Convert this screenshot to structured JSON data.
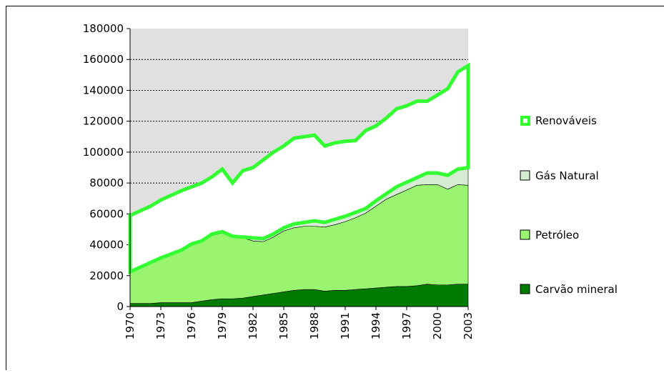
{
  "chart_data": {
    "type": "stacked_area",
    "x": [
      1970,
      1971,
      1972,
      1973,
      1974,
      1975,
      1976,
      1977,
      1978,
      1979,
      1980,
      1981,
      1982,
      1983,
      1984,
      1985,
      1986,
      1987,
      1988,
      1989,
      1990,
      1991,
      1992,
      1993,
      1994,
      1995,
      1996,
      1997,
      1998,
      1999,
      2000,
      2001,
      2002,
      2003
    ],
    "xlim": [
      1970,
      2003
    ],
    "xticks": [
      1970,
      1973,
      1976,
      1979,
      1982,
      1985,
      1988,
      1991,
      1994,
      1997,
      2000,
      2003
    ],
    "ylim": [
      0,
      180000
    ],
    "yticks": [
      0,
      20000,
      40000,
      60000,
      80000,
      100000,
      120000,
      140000,
      160000,
      180000
    ],
    "grid": true,
    "legend": "right",
    "series": [
      {
        "name": "Carvão mineral",
        "color": "#007a00",
        "values": [
          2000,
          2000,
          2000,
          2500,
          2500,
          2500,
          2500,
          3500,
          4500,
          5000,
          5000,
          5500,
          6500,
          7500,
          8500,
          9500,
          10500,
          11000,
          11000,
          10000,
          10500,
          10500,
          11000,
          11500,
          12000,
          12500,
          13000,
          13000,
          13500,
          14500,
          14000,
          14000,
          14500,
          14500
        ]
      },
      {
        "name": "Petróleo",
        "color": "#99f570",
        "values": [
          20000,
          23000,
          26000,
          28500,
          31000,
          33500,
          37500,
          38500,
          41500,
          42500,
          40000,
          39000,
          36000,
          34500,
          36500,
          39500,
          40500,
          41000,
          41000,
          41500,
          42500,
          44500,
          46500,
          49000,
          53000,
          57000,
          59500,
          62500,
          65000,
          64500,
          65000,
          62000,
          64500,
          64000
        ]
      },
      {
        "name": "Gás Natural",
        "color": "#d6ecd2",
        "values": [
          500,
          500,
          500,
          500,
          500,
          500,
          500,
          500,
          1000,
          1000,
          500,
          500,
          2000,
          2000,
          2000,
          2000,
          2500,
          2500,
          3500,
          3000,
          3500,
          3500,
          3500,
          3000,
          3500,
          3500,
          5000,
          5000,
          5000,
          7500,
          7500,
          9000,
          10000,
          11500
        ]
      },
      {
        "name": "Renováveis",
        "color": "#33ff33",
        "values": [
          36500,
          36500,
          36500,
          37500,
          38000,
          38500,
          37000,
          37500,
          37000,
          40500,
          34500,
          43000,
          45500,
          51000,
          53000,
          53000,
          55500,
          55500,
          55500,
          49500,
          49500,
          48500,
          46500,
          50500,
          48500,
          49000,
          50500,
          49500,
          49500,
          46500,
          50500,
          56000,
          63000,
          66000
        ]
      }
    ]
  }
}
